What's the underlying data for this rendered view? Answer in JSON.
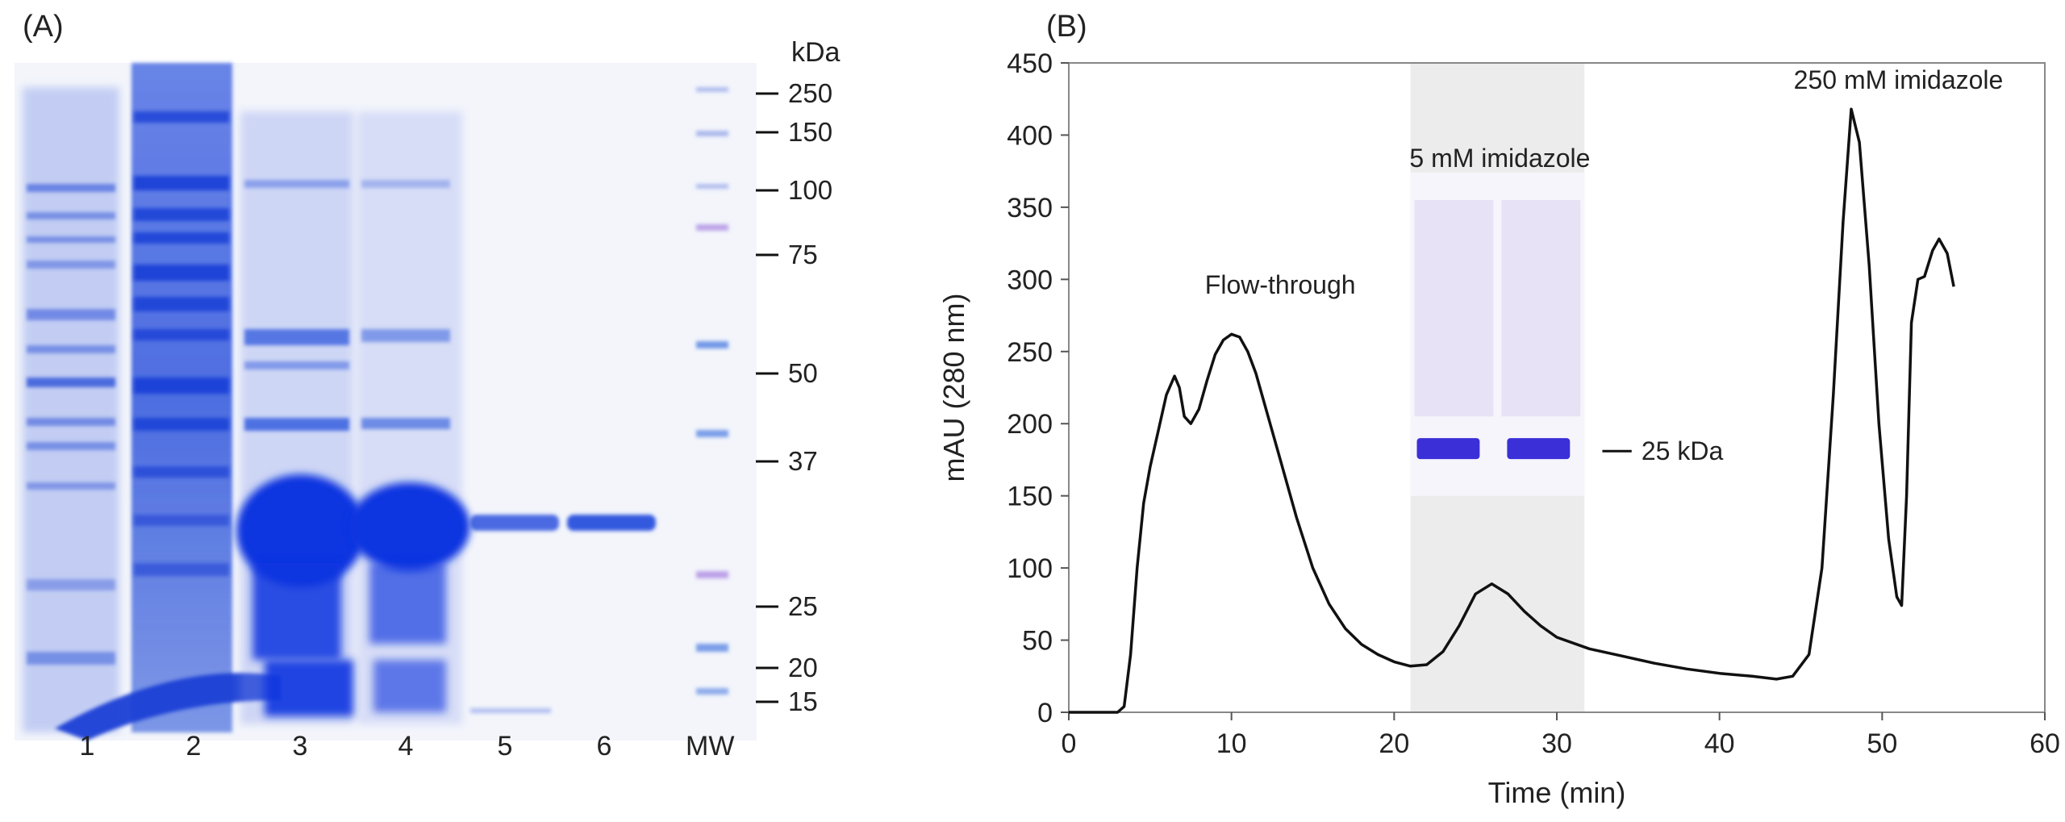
{
  "panel_a": {
    "label": "(A)",
    "unit_label": "kDa",
    "lanes": [
      "1",
      "2",
      "3",
      "4",
      "5",
      "6",
      "MW"
    ],
    "markers": [
      {
        "kda": 250,
        "label": "250"
      },
      {
        "kda": 150,
        "label": "150"
      },
      {
        "kda": 100,
        "label": "100"
      },
      {
        "kda": 75,
        "label": "75"
      },
      {
        "kda": 50,
        "label": "50"
      },
      {
        "kda": 37,
        "label": "37"
      },
      {
        "kda": 25,
        "label": "25"
      },
      {
        "kda": 20,
        "label": "20"
      },
      {
        "kda": 15,
        "label": "15"
      }
    ],
    "gel_color": "#1a3fd6"
  },
  "chart_data": {
    "type": "line",
    "panel_label": "(B)",
    "xlabel": "Time (min)",
    "ylabel": "mAU (280 nm)",
    "xlim": [
      0,
      60
    ],
    "ylim": [
      0,
      450
    ],
    "xticks": [
      "0",
      "10",
      "20",
      "30",
      "40",
      "50",
      "60"
    ],
    "yticks": [
      "0",
      "50",
      "100",
      "150",
      "200",
      "250",
      "300",
      "350",
      "400",
      "450"
    ],
    "grid": false,
    "shaded_region": [
      21,
      31.7
    ],
    "series": [
      {
        "x": [
          0,
          3,
          3.4,
          3.8,
          4.2,
          4.6,
          5,
          5.5,
          6,
          6.5,
          6.8,
          7.1,
          7.5,
          8,
          8.5,
          9,
          9.5,
          10,
          10.5,
          11,
          11.5,
          12,
          13,
          14,
          15,
          16,
          17,
          18,
          19,
          20,
          21,
          22,
          23,
          24,
          25,
          26,
          27,
          28,
          29,
          30,
          32,
          34,
          36,
          38,
          40,
          42,
          43.5,
          44.5,
          45.5,
          46.3,
          47,
          47.6,
          48.1,
          48.6,
          49.2,
          49.8,
          50.4,
          50.9,
          51.2,
          51.5,
          51.8,
          52.2,
          52.6,
          53.1,
          53.5,
          54,
          54.4
        ],
        "y": [
          0,
          0,
          4,
          40,
          100,
          145,
          170,
          195,
          220,
          233,
          225,
          205,
          200,
          210,
          230,
          248,
          258,
          262,
          260,
          250,
          235,
          215,
          175,
          135,
          100,
          75,
          58,
          47,
          40,
          35,
          32,
          33,
          42,
          60,
          82,
          89,
          82,
          70,
          60,
          52,
          44,
          39,
          34,
          30,
          27,
          25,
          23,
          25,
          40,
          100,
          220,
          340,
          418,
          395,
          310,
          200,
          120,
          80,
          74,
          150,
          270,
          300,
          302,
          320,
          328,
          318,
          295
        ]
      }
    ],
    "annotations": [
      {
        "text": "Flow-through",
        "x": 13,
        "y": 290
      },
      {
        "text": "5 mM imidazole",
        "x": 26.5,
        "y": 378
      },
      {
        "text": "250 mM imidazole",
        "x": 51,
        "y": 432
      }
    ],
    "inset_gel": {
      "marker_label": "25 kDa",
      "color": "#3b2fd8"
    }
  }
}
